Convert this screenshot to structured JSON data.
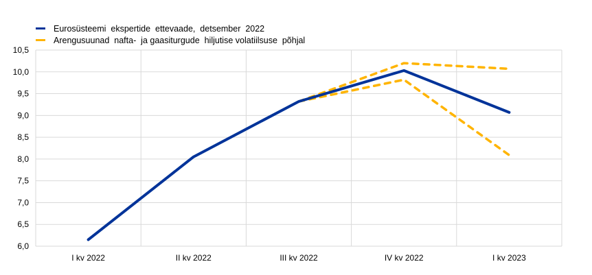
{
  "chart_data": {
    "type": "line",
    "title": "",
    "xlabel": "",
    "ylabel": "",
    "categories": [
      "I kv 2022",
      "II kv 2022",
      "III kv 2022",
      "IV kv 2022",
      "I kv 2023"
    ],
    "ylim": [
      6.0,
      10.5
    ],
    "yticks": [
      "6,0",
      "6,5",
      "7,0",
      "7,5",
      "8,0",
      "8,5",
      "9,0",
      "9,5",
      "10,0",
      "10,5"
    ],
    "grid": true,
    "legend_position": "top-left",
    "series": [
      {
        "name": "Eurosüsteemi  ekspertide  ettevaade,  detsember  2022",
        "color": "#003399",
        "style": "solid",
        "values": [
          6.15,
          8.05,
          9.32,
          10.03,
          9.07
        ]
      },
      {
        "name": "Arengusuunad  nafta-  ja gaasiturgude  hiljutise volatiilsuse  põhjal",
        "color": "#FFB400",
        "style": "dashed",
        "values": [
          null,
          null,
          9.32,
          10.2,
          10.07
        ]
      },
      {
        "name": "",
        "color": "#FFB400",
        "style": "dashed",
        "values": [
          null,
          null,
          9.32,
          9.82,
          8.09
        ]
      }
    ]
  }
}
